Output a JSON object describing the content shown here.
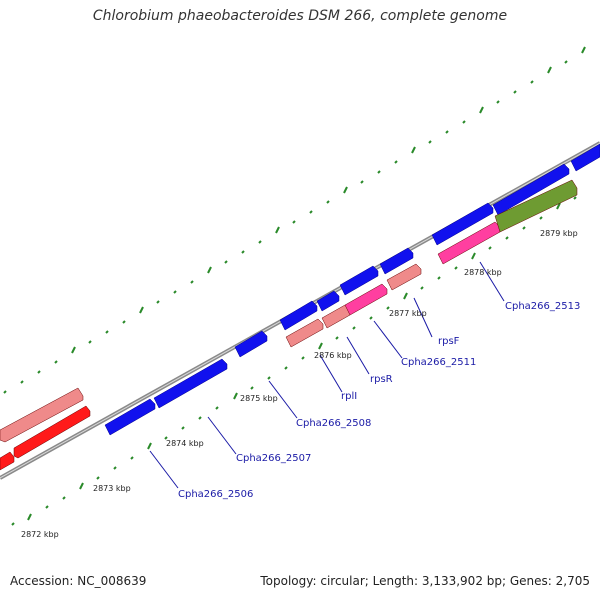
{
  "title": "Chlorobium phaeobacteroides DSM 266, complete genome",
  "footer": {
    "accession": "Accession: NC_008639",
    "topology": "Topology: circular; Length: 3,133,902 bp; Genes: 2,705"
  },
  "colors": {
    "backbone": "#8a8a8a",
    "forward_gene": "#1111ee",
    "reverse_gene": "#ee2222",
    "pink": "#ff3fa0",
    "salmon": "#ef8a8a",
    "olive": "#6e9b32",
    "tick": "#2a8a2a",
    "label": "#1a1aa6"
  },
  "scale": {
    "labels": [
      "2872 kbp",
      "2873 kbp",
      "2874 kbp",
      "2875 kbp",
      "2876 kbp",
      "2877 kbp",
      "2878 kbp",
      "2879 kbp"
    ]
  },
  "genes": [
    {
      "name": "Cpha266_2506",
      "strand": "+",
      "color": "blue"
    },
    {
      "name": "Cpha266_2507",
      "strand": "+",
      "color": "blue"
    },
    {
      "name": "Cpha266_2508",
      "strand": "+",
      "color": "blue"
    },
    {
      "name": "rplI",
      "strand": "+",
      "color": "blue"
    },
    {
      "name": "rpsR",
      "strand": "+",
      "color": "blue"
    },
    {
      "name": "Cpha266_2511",
      "strand": "-",
      "color": "pink"
    },
    {
      "name": "rpsF",
      "strand": "-",
      "color": "salmon"
    },
    {
      "name": "Cpha266_2513",
      "strand": "-",
      "color": "pink"
    }
  ]
}
